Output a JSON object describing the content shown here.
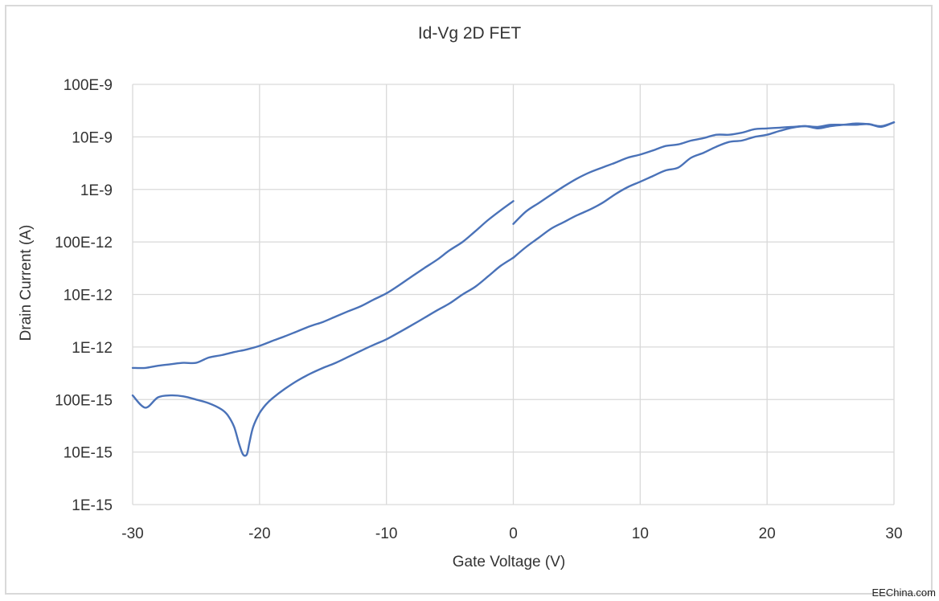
{
  "chart_data": {
    "type": "line",
    "title": "Id-Vg 2D FET",
    "xlabel": "Gate Voltage (V)",
    "ylabel": "Drain Current (A)",
    "x_scale": "linear",
    "y_scale": "log",
    "xlim": [
      -30,
      30
    ],
    "ylim": [
      1e-15,
      1e-07
    ],
    "x_ticks": [
      -30,
      -20,
      -10,
      0,
      10,
      20,
      30
    ],
    "x_tick_labels": [
      "-30",
      "-20",
      "-10",
      "0",
      "10",
      "20",
      "30"
    ],
    "y_ticks": [
      1e-15,
      1e-14,
      1e-13,
      1e-12,
      1e-11,
      1e-10,
      1e-09,
      1e-08,
      1e-07
    ],
    "y_tick_labels": [
      "1E-15",
      "10E-15",
      "100E-15",
      "1E-12",
      "10E-12",
      "100E-12",
      "1E-9",
      "10E-9",
      "100E-9"
    ],
    "grid": true,
    "line_color": "#4a72b8",
    "series": [
      {
        "x": [
          -30,
          -29,
          -28,
          -27,
          -26,
          -25,
          -24,
          -23,
          -22,
          -21,
          -20,
          -19,
          -18,
          -17,
          -16,
          -15,
          -14,
          -13,
          -12,
          -11,
          -10,
          -9,
          -8,
          -7,
          -6,
          -5,
          -4,
          -3,
          -2,
          -1,
          0
        ],
        "y": [
          4e-13,
          4e-13,
          4.4e-13,
          4.7e-13,
          5e-13,
          5e-13,
          6.3e-13,
          7e-13,
          8e-13,
          9e-13,
          1.05e-12,
          1.3e-12,
          1.6e-12,
          2e-12,
          2.5e-12,
          3e-12,
          3.8e-12,
          4.8e-12,
          6e-12,
          8e-12,
          1.05e-11,
          1.5e-11,
          2.2e-11,
          3.2e-11,
          4.6e-11,
          7e-11,
          1e-10,
          1.6e-10,
          2.6e-10,
          4e-10,
          6e-10
        ]
      },
      {
        "x": [
          0,
          1,
          2,
          3,
          4,
          5,
          6,
          7,
          8,
          9,
          10,
          11,
          12,
          13,
          14,
          15,
          16,
          17,
          18,
          19,
          20,
          21,
          22,
          23,
          24,
          25,
          26,
          27,
          28,
          29,
          30
        ],
        "y": [
          2.2e-10,
          3.8e-10,
          5.5e-10,
          8e-10,
          1.15e-09,
          1.6e-09,
          2.1e-09,
          2.6e-09,
          3.2e-09,
          4e-09,
          4.6e-09,
          5.5e-09,
          6.7e-09,
          7.2e-09,
          8.5e-09,
          9.5e-09,
          1.1e-08,
          1.1e-08,
          1.2e-08,
          1.4e-08,
          1.45e-08,
          1.5e-08,
          1.55e-08,
          1.6e-08,
          1.55e-08,
          1.7e-08,
          1.7e-08,
          1.7e-08,
          1.75e-08,
          1.55e-08,
          1.9e-08
        ]
      },
      {
        "x": [
          30,
          29,
          28,
          27,
          26,
          25,
          24,
          23,
          22,
          21,
          20,
          19,
          18,
          17,
          16,
          15,
          14,
          13,
          12,
          11,
          10,
          9,
          8,
          7,
          6,
          5,
          4,
          3,
          2,
          1,
          0
        ],
        "y": [
          1.9e-08,
          1.6e-08,
          1.75e-08,
          1.8e-08,
          1.7e-08,
          1.6e-08,
          1.45e-08,
          1.6e-08,
          1.5e-08,
          1.3e-08,
          1.1e-08,
          1e-08,
          8.5e-09,
          8e-09,
          6.5e-09,
          5e-09,
          4e-09,
          2.6e-09,
          2.3e-09,
          1.8e-09,
          1.4e-09,
          1.1e-09,
          8e-10,
          5.5e-10,
          4.1e-10,
          3.2e-10,
          2.4e-10,
          1.8e-10,
          1.2e-10,
          8e-11,
          5e-11
        ]
      },
      {
        "x": [
          0,
          -1,
          -2,
          -3,
          -4,
          -5,
          -6,
          -7,
          -8,
          -9,
          -10,
          -11,
          -12,
          -13,
          -14,
          -15,
          -16,
          -17,
          -18,
          -19,
          -19.5,
          -20,
          -20.5,
          -20.8,
          -21,
          -21.3,
          -21.6,
          -22,
          -22.5,
          -23,
          -24,
          -25,
          -26,
          -27,
          -28,
          -29,
          -30
        ],
        "y": [
          5e-11,
          3.5e-11,
          2.2e-11,
          1.4e-11,
          1e-11,
          6.8e-12,
          5e-12,
          3.6e-12,
          2.6e-12,
          1.9e-12,
          1.4e-12,
          1.1e-12,
          8.5e-13,
          6.5e-13,
          5e-13,
          4e-13,
          3.1e-13,
          2.3e-13,
          1.6e-13,
          1.05e-13,
          8e-14,
          5.5e-14,
          3e-14,
          1.5e-14,
          9e-15,
          9e-15,
          1.4e-14,
          3e-14,
          5e-14,
          6.5e-14,
          8.5e-14,
          1e-13,
          1.15e-13,
          1.2e-13,
          1.1e-13,
          7e-14,
          1.2e-13
        ]
      }
    ],
    "watermark": "EEChina.com"
  }
}
